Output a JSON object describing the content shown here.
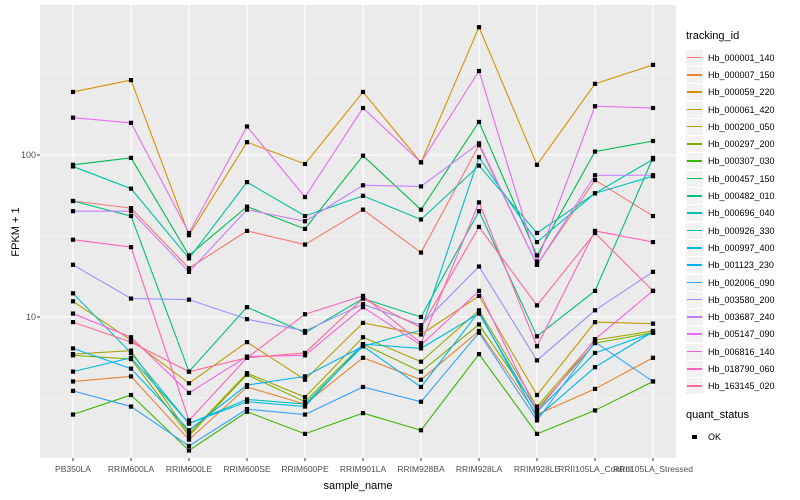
{
  "chart_data": {
    "type": "line",
    "title": "",
    "xlabel": "sample_name",
    "ylabel": "FPKM + 1",
    "y_scale": "log10",
    "y_ticks": [
      100,
      10
    ],
    "y_minor_gridlines": [
      316,
      31.6,
      3.16
    ],
    "ylim": [
      1.3,
      700
    ],
    "grid": true,
    "legend_position": "right",
    "legend_title": "tracking_id",
    "marker": {
      "shape": "filled-square",
      "color": "#000000",
      "size": 4
    },
    "categories": [
      "PB350LA",
      "RRIM600LA",
      "RRIM600LE",
      "RRIM600SE",
      "RRIM600PE",
      "RRIM901LA",
      "RRIM928BA",
      "RRIM928LA",
      "RRIM928LE",
      "RRII105LA_Control",
      "RRII105LA_Stressed"
    ],
    "series": [
      {
        "name": "Hb_000001_140",
        "color": "#F8766D",
        "values": [
          52,
          47,
          20,
          34,
          28,
          46,
          25,
          115,
          21,
          70,
          42
        ]
      },
      {
        "name": "Hb_000007_150",
        "color": "#EA8331",
        "values": [
          4.0,
          4.3,
          1.75,
          3.7,
          2.9,
          5.6,
          4.1,
          8.2,
          2.5,
          3.6,
          5.6
        ]
      },
      {
        "name": "Hb_000059_220",
        "color": "#D89000",
        "values": [
          245,
          290,
          32,
          120,
          88,
          245,
          90,
          615,
          87,
          275,
          360
        ]
      },
      {
        "name": "Hb_000061_420",
        "color": "#C09B00",
        "values": [
          12.5,
          7.2,
          3.9,
          7.0,
          4.1,
          9.2,
          7.8,
          13.5,
          3.3,
          9.3,
          9.1
        ]
      },
      {
        "name": "Hb_000200_050",
        "color": "#A3A500",
        "values": [
          5.9,
          6.2,
          1.9,
          4.5,
          3.2,
          7.5,
          5.3,
          11.0,
          2.8,
          7.2,
          8.2
        ]
      },
      {
        "name": "Hb_000297_200",
        "color": "#7CAE00",
        "values": [
          5.8,
          5.5,
          1.85,
          4.4,
          3.0,
          6.8,
          4.6,
          9.0,
          2.7,
          6.9,
          8.0
        ]
      },
      {
        "name": "Hb_000307_030",
        "color": "#39B600",
        "values": [
          2.5,
          3.3,
          1.5,
          2.6,
          1.9,
          2.55,
          2.0,
          5.9,
          1.9,
          2.65,
          4.0
        ]
      },
      {
        "name": "Hb_000457_150",
        "color": "#00BB4E",
        "values": [
          87,
          96,
          24,
          48,
          35,
          99,
          46,
          160,
          24,
          105,
          122
        ]
      },
      {
        "name": "Hb_000482_010",
        "color": "#00BF7D",
        "values": [
          52,
          42,
          4.6,
          11.5,
          8.0,
          13,
          10,
          45,
          7.6,
          14.5,
          96
        ]
      },
      {
        "name": "Hb_000696_040",
        "color": "#00C1A3",
        "values": [
          85,
          62,
          23,
          68,
          42,
          56,
          40,
          86,
          33,
          58,
          94
        ]
      },
      {
        "name": "Hb_000926_330",
        "color": "#00BFC4",
        "values": [
          14,
          6.0,
          2.2,
          3.1,
          2.9,
          6.6,
          8.3,
          97,
          29,
          58,
          74
        ]
      },
      {
        "name": "Hb_000997_400",
        "color": "#00BAE0",
        "values": [
          4.6,
          5.6,
          2.2,
          3.0,
          2.8,
          6.8,
          6.4,
          10.5,
          2.6,
          6.0,
          8.0
        ]
      },
      {
        "name": "Hb_001123_230",
        "color": "#00B0F6",
        "values": [
          6.4,
          4.8,
          2.0,
          3.8,
          4.3,
          6.6,
          3.7,
          10.8,
          2.4,
          4.9,
          8.1
        ]
      },
      {
        "name": "Hb_002006_090",
        "color": "#35A2FF",
        "values": [
          3.5,
          2.8,
          1.6,
          2.7,
          2.5,
          3.7,
          3.0,
          8.0,
          2.3,
          7.0,
          4.0
        ]
      },
      {
        "name": "Hb_003580_200",
        "color": "#9590FF",
        "values": [
          21,
          13,
          12.8,
          9.7,
          8.2,
          12,
          8.9,
          20.5,
          5.4,
          11,
          19
        ]
      },
      {
        "name": "Hb_003687_240",
        "color": "#C77CFF",
        "values": [
          45,
          45,
          19,
          46,
          39,
          65,
          64,
          118,
          21,
          75,
          75
        ]
      },
      {
        "name": "Hb_005147_090",
        "color": "#E76BF3",
        "values": [
          170,
          158,
          33,
          150,
          55,
          195,
          90,
          330,
          22,
          200,
          195
        ]
      },
      {
        "name": "Hb_006816_140",
        "color": "#FA62DB",
        "values": [
          10.5,
          7.5,
          3.4,
          5.7,
          5.8,
          11.5,
          6.7,
          14.5,
          2.6,
          7.3,
          14.5
        ]
      },
      {
        "name": "Hb_018790_060",
        "color": "#FF62BC",
        "values": [
          30,
          27,
          2.3,
          5.6,
          10.4,
          13.5,
          6.9,
          51,
          6.6,
          34,
          29
        ]
      },
      {
        "name": "Hb_163145_020",
        "color": "#FF6A98",
        "values": [
          9.3,
          7.0,
          4.6,
          5.6,
          6.0,
          13,
          8.6,
          36,
          11.8,
          33,
          14.5
        ]
      }
    ],
    "quant_legend": {
      "title": "quant_status",
      "items": [
        {
          "label": "OK",
          "marker": "black-square"
        }
      ]
    }
  },
  "colors": {
    "panel_background": "#EBEBEB",
    "gridline_major": "#FFFFFF",
    "gridline_minor": "#F5F5F5",
    "tick_text": "#4D4D4D",
    "axis_title_text": "#000000",
    "legend_key_background": "#F2F2F2",
    "marker": "#000000"
  }
}
